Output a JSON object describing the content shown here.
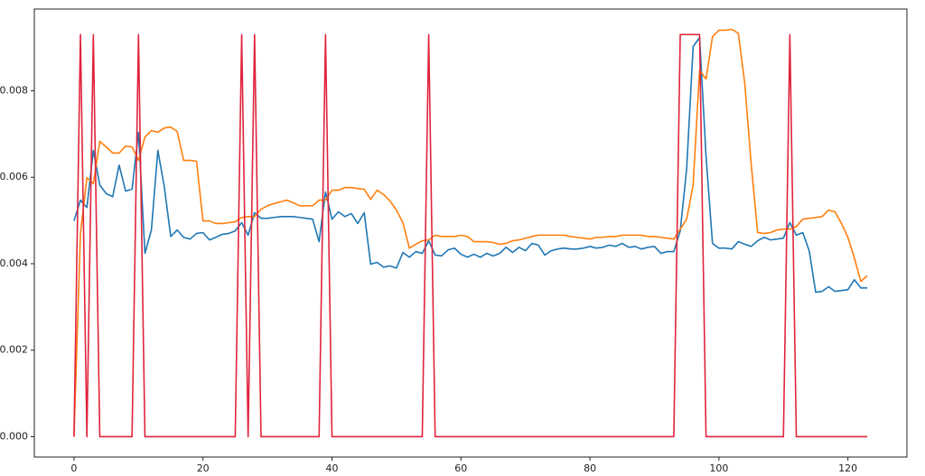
{
  "chart_data": {
    "type": "line",
    "x": [
      0,
      1,
      2,
      3,
      4,
      5,
      6,
      7,
      8,
      9,
      10,
      11,
      12,
      13,
      14,
      15,
      16,
      17,
      18,
      19,
      20,
      21,
      22,
      23,
      24,
      25,
      26,
      27,
      28,
      29,
      30,
      31,
      32,
      33,
      34,
      35,
      36,
      37,
      38,
      39,
      40,
      41,
      42,
      43,
      44,
      45,
      46,
      47,
      48,
      49,
      50,
      51,
      52,
      53,
      54,
      55,
      56,
      57,
      58,
      59,
      60,
      61,
      62,
      63,
      64,
      65,
      66,
      67,
      68,
      69,
      70,
      71,
      72,
      73,
      74,
      75,
      76,
      77,
      78,
      79,
      80,
      81,
      82,
      83,
      84,
      85,
      86,
      87,
      88,
      89,
      90,
      91,
      92,
      93,
      94,
      95,
      96,
      97,
      98,
      99,
      100,
      101,
      102,
      103,
      104,
      105,
      106,
      107,
      108,
      109,
      110,
      111,
      112,
      113,
      114,
      115,
      116,
      117,
      118,
      119,
      120,
      121,
      122,
      123
    ],
    "series": [
      {
        "color": "#1f77b4",
        "values": [
          0.00499,
          0.00547,
          0.0053,
          0.00662,
          0.00582,
          0.00562,
          0.00555,
          0.00628,
          0.00568,
          0.00572,
          0.00704,
          0.00424,
          0.00478,
          0.00662,
          0.00578,
          0.00463,
          0.00478,
          0.00461,
          0.00457,
          0.0047,
          0.00472,
          0.00455,
          0.00461,
          0.00468,
          0.0047,
          0.00476,
          0.00495,
          0.00466,
          0.00518,
          0.00505,
          0.00505,
          0.00507,
          0.00509,
          0.00509,
          0.00509,
          0.00507,
          0.00505,
          0.00503,
          0.00451,
          0.00566,
          0.00503,
          0.0052,
          0.00509,
          0.00516,
          0.00493,
          0.00518,
          0.00399,
          0.00403,
          0.00392,
          0.00395,
          0.0039,
          0.00426,
          0.00415,
          0.00428,
          0.00424,
          0.00453,
          0.0042,
          0.00418,
          0.00432,
          0.00436,
          0.00422,
          0.00415,
          0.00422,
          0.00415,
          0.00424,
          0.00418,
          0.00424,
          0.00438,
          0.00426,
          0.00438,
          0.0043,
          0.00447,
          0.00443,
          0.0042,
          0.0043,
          0.00434,
          0.00436,
          0.00434,
          0.00434,
          0.00436,
          0.0044,
          0.00436,
          0.00438,
          0.00443,
          0.0044,
          0.00447,
          0.00438,
          0.0044,
          0.00434,
          0.00438,
          0.0044,
          0.00424,
          0.00428,
          0.00428,
          0.00476,
          0.0062,
          0.00902,
          0.00923,
          0.00649,
          0.00447,
          0.00436,
          0.00436,
          0.00434,
          0.00451,
          0.00445,
          0.0044,
          0.00453,
          0.00461,
          0.00455,
          0.00457,
          0.00459,
          0.00495,
          0.00466,
          0.00472,
          0.0043,
          0.00334,
          0.00336,
          0.00347,
          0.00336,
          0.00338,
          0.0034,
          0.00363,
          0.00344,
          0.00344
        ]
      },
      {
        "color": "#ff7f0e",
        "values": [
          0.0,
          0.0047,
          0.00599,
          0.00585,
          0.00683,
          0.0067,
          0.00656,
          0.00656,
          0.00672,
          0.0067,
          0.00639,
          0.00693,
          0.00708,
          0.00704,
          0.00714,
          0.00716,
          0.00706,
          0.00639,
          0.00639,
          0.00637,
          0.00499,
          0.00499,
          0.00493,
          0.00493,
          0.00495,
          0.00497,
          0.00507,
          0.00509,
          0.00509,
          0.00526,
          0.00534,
          0.00539,
          0.00543,
          0.00547,
          0.00541,
          0.00534,
          0.00534,
          0.00534,
          0.00547,
          0.00547,
          0.0057,
          0.0057,
          0.00576,
          0.00576,
          0.00574,
          0.00572,
          0.00549,
          0.0057,
          0.0056,
          0.00545,
          0.00524,
          0.00495,
          0.00436,
          0.00445,
          0.00453,
          0.00455,
          0.00466,
          0.00463,
          0.00463,
          0.00463,
          0.00466,
          0.00463,
          0.00451,
          0.00451,
          0.00451,
          0.00449,
          0.00445,
          0.00447,
          0.00453,
          0.00455,
          0.00459,
          0.00463,
          0.00466,
          0.00466,
          0.00466,
          0.00466,
          0.00466,
          0.00463,
          0.00461,
          0.00459,
          0.00457,
          0.00461,
          0.00461,
          0.00463,
          0.00463,
          0.00466,
          0.00466,
          0.00466,
          0.00466,
          0.00463,
          0.00463,
          0.00461,
          0.00459,
          0.00457,
          0.0048,
          0.00503,
          0.00582,
          0.00848,
          0.00827,
          0.00925,
          0.0094,
          0.0094,
          0.00942,
          0.00933,
          0.00818,
          0.0063,
          0.00472,
          0.0047,
          0.00472,
          0.00478,
          0.0048,
          0.0048,
          0.00486,
          0.00503,
          0.00505,
          0.00507,
          0.00509,
          0.00524,
          0.0052,
          0.00493,
          0.00461,
          0.00413,
          0.00359,
          0.00372
        ]
      },
      {
        "color": "#e0243c",
        "values": [
          0,
          0.0093,
          0,
          0.0093,
          0,
          0,
          0,
          0,
          0,
          0,
          0.0093,
          0,
          0,
          0,
          0,
          0,
          0,
          0,
          0,
          0,
          0,
          0,
          0,
          0,
          0,
          0,
          0.0093,
          0,
          0.0093,
          0,
          0,
          0,
          0,
          0,
          0,
          0,
          0,
          0,
          0,
          0.0093,
          0,
          0,
          0,
          0,
          0,
          0,
          0,
          0,
          0,
          0,
          0,
          0,
          0,
          0,
          0,
          0.0093,
          0,
          0,
          0,
          0,
          0,
          0,
          0,
          0,
          0,
          0,
          0,
          0,
          0,
          0,
          0,
          0,
          0,
          0,
          0,
          0,
          0,
          0,
          0,
          0,
          0,
          0,
          0,
          0,
          0,
          0,
          0,
          0,
          0,
          0,
          0,
          0,
          0,
          0,
          0.0093,
          0.0093,
          0.0093,
          0.0093,
          0,
          0,
          0,
          0,
          0,
          0,
          0,
          0,
          0,
          0,
          0,
          0,
          0,
          0.0093,
          0,
          0,
          0,
          0,
          0,
          0,
          0,
          0,
          0,
          0,
          0,
          0
        ]
      }
    ],
    "xlim": [
      -6.15,
      129.15
    ],
    "xticks": [
      0,
      20,
      40,
      60,
      80,
      100,
      120
    ],
    "ylim": [
      -0.000471,
      0.00989
    ],
    "yticks": [
      {
        "value": 0,
        "label": "0.000"
      },
      {
        "value": 0.002,
        "label": "0.002"
      },
      {
        "value": 0.004,
        "label": "0.004"
      },
      {
        "value": 0.006,
        "label": "0.006"
      },
      {
        "value": 0.008,
        "label": "0.008"
      }
    ]
  }
}
